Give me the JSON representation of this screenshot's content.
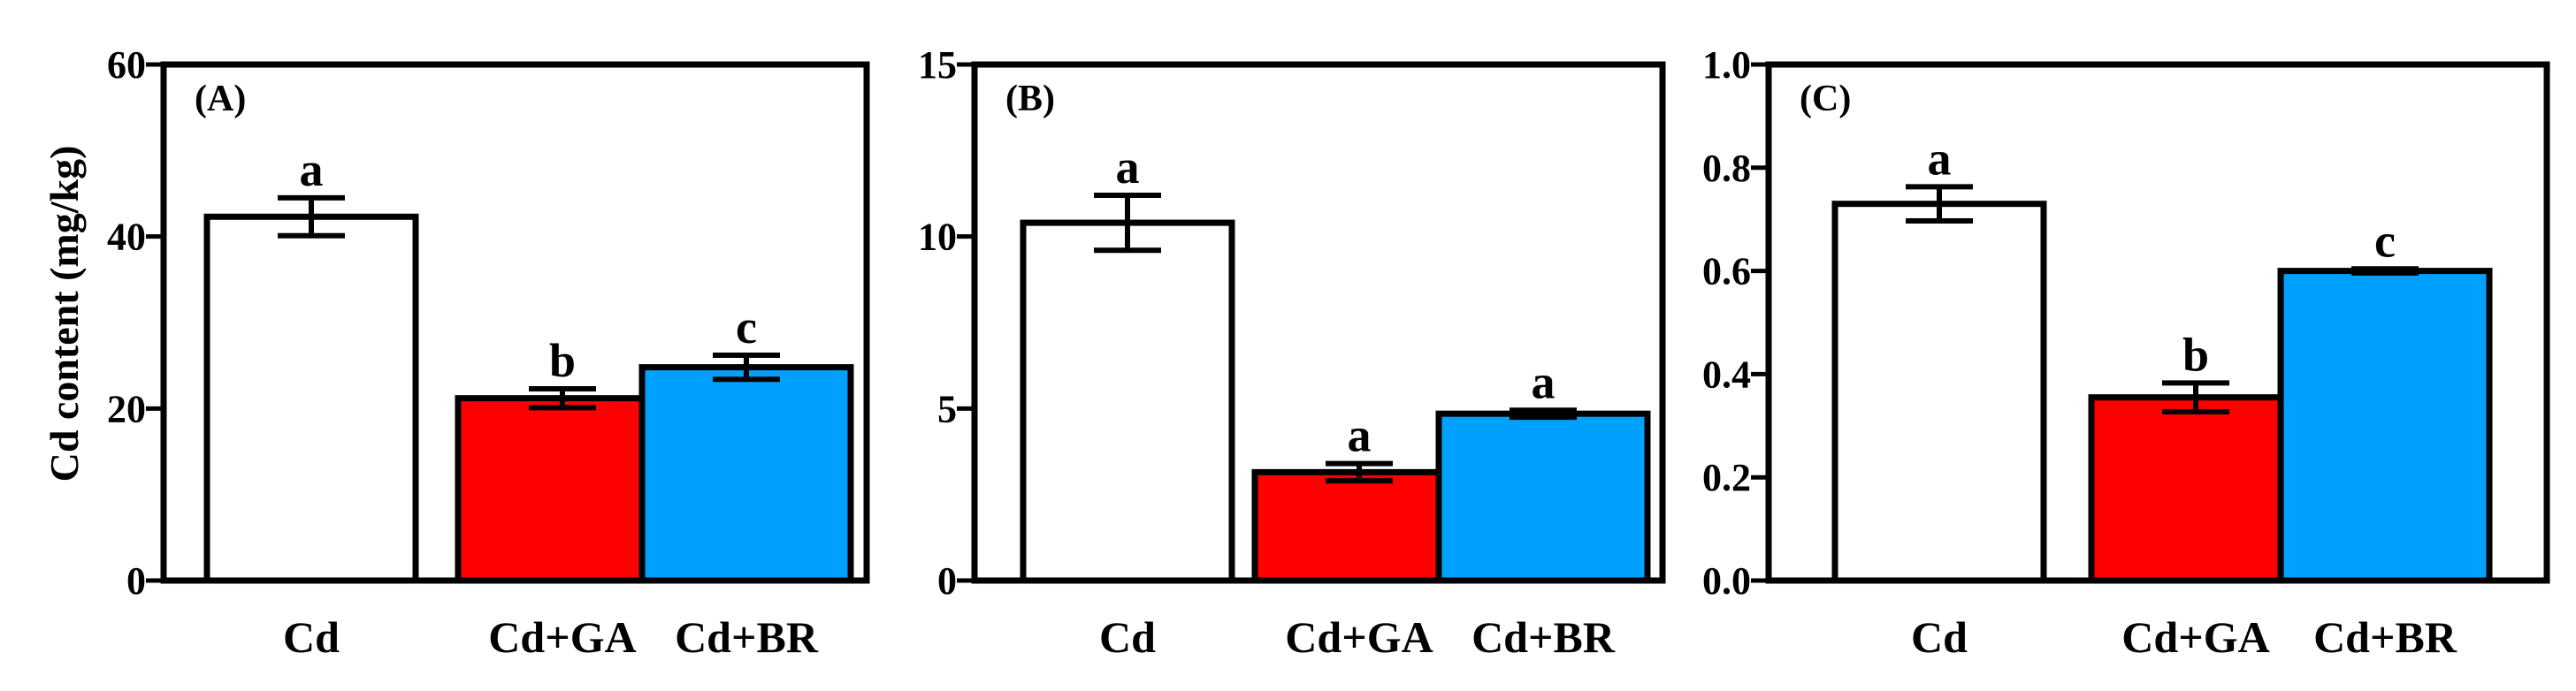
{
  "chart_data": [
    {
      "type": "bar",
      "panel_label": "(A)",
      "ylabel": "Cd content (mg/kg)",
      "xlabel": "",
      "ylim": [
        0,
        60
      ],
      "yticks": [
        0,
        20,
        40,
        60
      ],
      "categories": [
        "Cd",
        "Cd+GA",
        "Cd+BR"
      ],
      "values": [
        42.3,
        21.2,
        24.8
      ],
      "errors": [
        2.2,
        1.1,
        1.4
      ],
      "significance": [
        "a",
        "b",
        "c"
      ],
      "colors": [
        "#ffffff",
        "#ff0000",
        "#00a0ff"
      ]
    },
    {
      "type": "bar",
      "panel_label": "(B)",
      "ylabel": "",
      "xlabel": "",
      "ylim": [
        0,
        15
      ],
      "yticks": [
        0,
        5,
        10,
        15
      ],
      "categories": [
        "Cd",
        "Cd+GA",
        "Cd+BR"
      ],
      "values": [
        10.4,
        3.15,
        4.85
      ],
      "errors": [
        0.8,
        0.25,
        0.1
      ],
      "significance": [
        "a",
        "a",
        "a"
      ],
      "colors": [
        "#ffffff",
        "#ff0000",
        "#00a0ff"
      ]
    },
    {
      "type": "bar",
      "panel_label": "(C)",
      "ylabel": "",
      "xlabel": "",
      "ylim": [
        0,
        1.0
      ],
      "yticks": [
        "0.0",
        "0.2",
        "0.4",
        "0.6",
        "0.8",
        "1.0"
      ],
      "categories": [
        "Cd",
        "Cd+GA",
        "Cd+BR"
      ],
      "values": [
        0.73,
        0.355,
        0.6
      ],
      "errors": [
        0.033,
        0.028,
        0.004
      ],
      "significance": [
        "a",
        "b",
        "c"
      ],
      "colors": [
        "#ffffff",
        "#ff0000",
        "#00a0ff"
      ]
    }
  ]
}
